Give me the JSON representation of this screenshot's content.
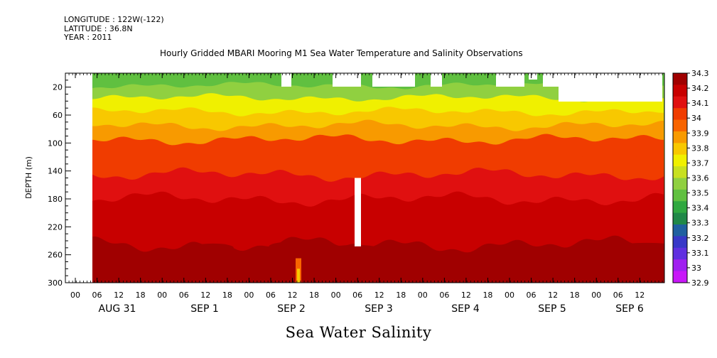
{
  "header": {
    "longitude": "LONGITUDE : 122W(-122)",
    "latitude": "LATITUDE : 36.8N",
    "year": "YEAR : 2011"
  },
  "chart_title": "Hourly Gridded MBARI Mooring M1 Sea Water Temperature and Salinity Observations",
  "footer_label": "Sea Water Salinity",
  "chart_data": {
    "type": "heatmap",
    "title": "Hourly Gridded MBARI Mooring M1 Sea Water Temperature and Salinity Observations",
    "xlabel": "",
    "ylabel": "DEPTH (m)",
    "ylim": [
      300,
      0
    ],
    "y_ticks": [
      20,
      60,
      100,
      140,
      180,
      220,
      260,
      300
    ],
    "x_hour_labels": [
      "00",
      "06",
      "12",
      "18",
      "00",
      "06",
      "12",
      "18",
      "00",
      "06",
      "12",
      "18",
      "00",
      "06",
      "12",
      "18",
      "00",
      "06",
      "12",
      "18",
      "00",
      "06",
      "12",
      "18",
      "00",
      "06",
      "12"
    ],
    "x_date_labels": [
      "AUG 31",
      "SEP  1",
      "SEP  2",
      "SEP  3",
      "SEP  4",
      "SEP  5",
      "SEP  6"
    ],
    "colorbar": {
      "min": 32.9,
      "max": 34.3,
      "labels": [
        "34.3",
        "34.2",
        "34.1",
        "34",
        "33.9",
        "33.8",
        "33.7",
        "33.6",
        "33.5",
        "33.4",
        "33.3",
        "33.2",
        "33.1",
        "33",
        "32.9"
      ],
      "colors_high_to_low": [
        "#a00000",
        "#c80000",
        "#e01010",
        "#f03c00",
        "#f86400",
        "#f89a00",
        "#f8c800",
        "#f0f000",
        "#c8e020",
        "#90d040",
        "#60c040",
        "#30a840",
        "#208848",
        "#2060a0",
        "#3838c8",
        "#6030e0",
        "#a020f0",
        "#c818f8"
      ]
    },
    "depth_profile": [
      {
        "depth": 10,
        "value": 33.45
      },
      {
        "depth": 25,
        "value": 33.55
      },
      {
        "depth": 45,
        "value": 33.7
      },
      {
        "depth": 65,
        "value": 33.8
      },
      {
        "depth": 85,
        "value": 33.9
      },
      {
        "depth": 105,
        "value": 34.0
      },
      {
        "depth": 130,
        "value": 34.05
      },
      {
        "depth": 160,
        "value": 34.1
      },
      {
        "depth": 200,
        "value": 34.15
      },
      {
        "depth": 235,
        "value": 34.2
      },
      {
        "depth": 255,
        "value": 34.3
      },
      {
        "depth": 285,
        "value": 34.25
      }
    ],
    "grid": false,
    "legend": "right"
  }
}
